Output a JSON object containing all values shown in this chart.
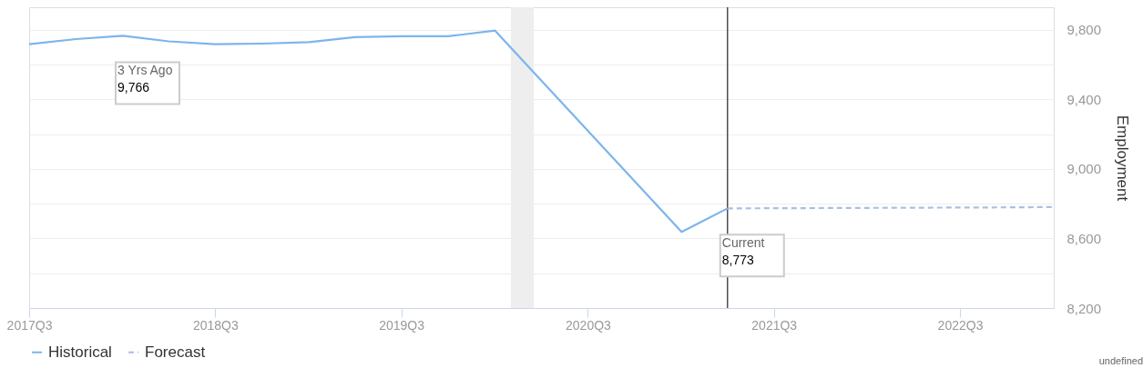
{
  "chart_data": {
    "type": "line",
    "ylabel": "Employment",
    "xlim": [
      "2017-07",
      "2023-01"
    ],
    "xticks": [
      {
        "value": "2017-07",
        "label": "2017Q3"
      },
      {
        "value": "2018-07",
        "label": "2018Q3"
      },
      {
        "value": "2019-07",
        "label": "2019Q3"
      },
      {
        "value": "2020-07",
        "label": "2020Q3"
      },
      {
        "value": "2021-07",
        "label": "2021Q3"
      },
      {
        "value": "2022-07",
        "label": "2022Q3"
      }
    ],
    "ylim": [
      8200,
      9930
    ],
    "yticks": [
      {
        "value": 8200,
        "label": "8,200"
      },
      {
        "value": 8400,
        "label": null
      },
      {
        "value": 8600,
        "label": "8,600"
      },
      {
        "value": 8800,
        "label": null
      },
      {
        "value": 9000,
        "label": "9,000"
      },
      {
        "value": 9200,
        "label": null
      },
      {
        "value": 9400,
        "label": "9,400"
      },
      {
        "value": 9600,
        "label": null
      },
      {
        "value": 9800,
        "label": "9,800"
      }
    ],
    "grid": "y",
    "legend": "bottom",
    "series": [
      {
        "name": "Historical",
        "color": "#7cb5ec",
        "line_style": "solid",
        "x": [
          "2017-07",
          "2017-10",
          "2018-01",
          "2018-04",
          "2018-07",
          "2018-10",
          "2019-01",
          "2019-04",
          "2019-07",
          "2019-10",
          "2020-01",
          "2021-01",
          "2021-04"
        ],
        "values": [
          9718,
          9747,
          9766,
          9734,
          9718,
          9721,
          9729,
          9758,
          9763,
          9763,
          9796,
          8638,
          8773
        ]
      },
      {
        "name": "Forecast",
        "color": "#a9c0e0",
        "line_style": "dashed",
        "x": [
          "2021-04",
          "2021-07",
          "2021-10",
          "2022-01",
          "2022-04",
          "2022-07",
          "2022-10",
          "2023-01"
        ],
        "values": [
          8773,
          8774,
          8775,
          8776,
          8777,
          8778,
          8779,
          8781
        ]
      }
    ],
    "bands": [
      {
        "axis": "x",
        "from": "2020-02",
        "to": "2020-03-17",
        "color": "#eeeeee"
      }
    ],
    "ref_lines": [
      {
        "axis": "x",
        "value": "2021-04",
        "color": "#333333",
        "line_style": "solid"
      }
    ],
    "annotations": [
      {
        "text": "3 Yrs Ago\n9,766",
        "x": "2018-01",
        "y": 9766
      },
      {
        "text": "Current\n8,773",
        "x": "2021-04",
        "y": 8773
      },
      "undefined"
    ]
  }
}
